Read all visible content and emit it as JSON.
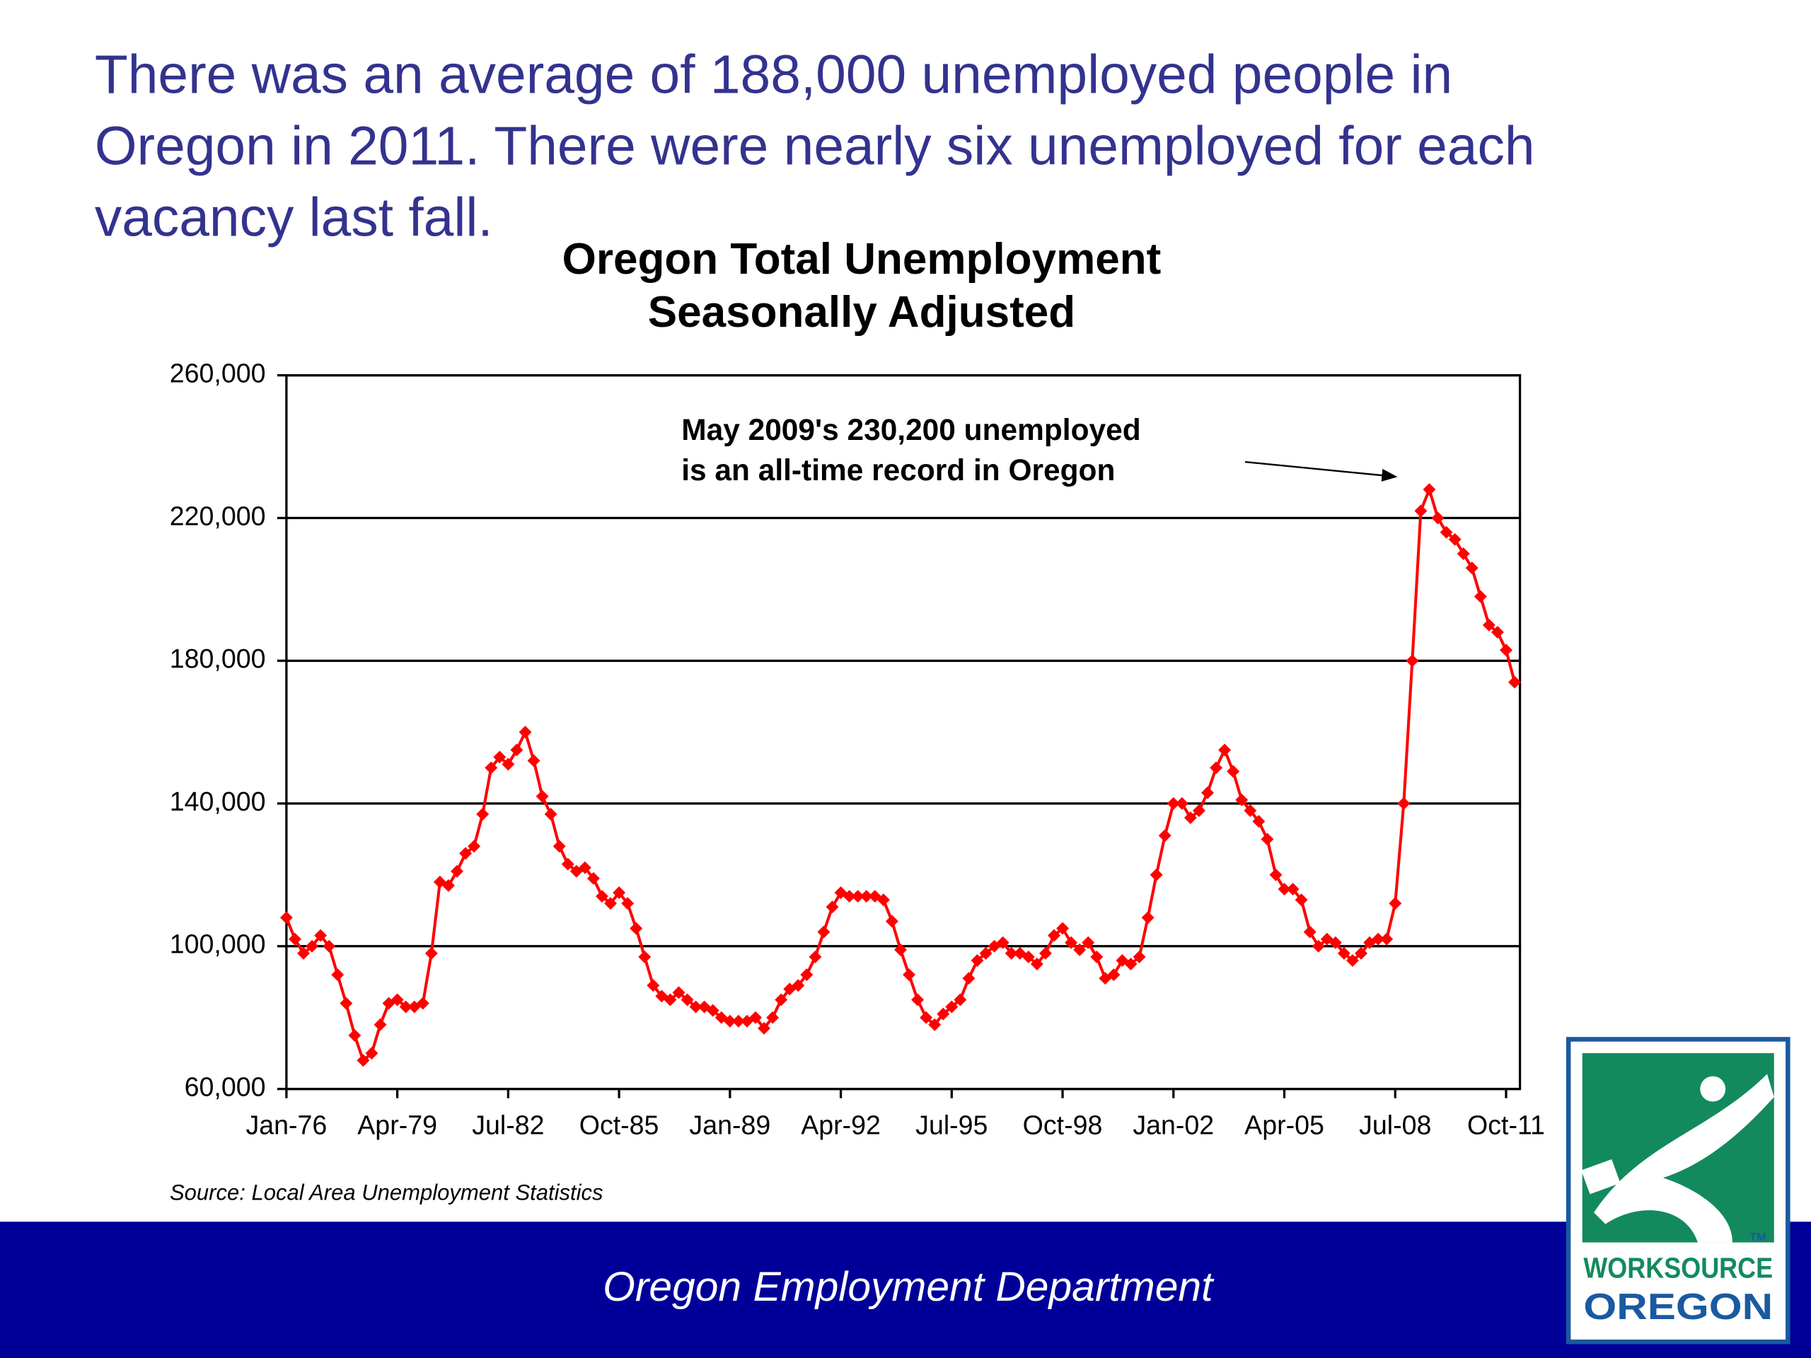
{
  "header": {
    "lines": [
      "There was an average of 188,000 unemployed people in",
      "Oregon in 2011. There were nearly six unemployed for each",
      "vacancy last fall."
    ]
  },
  "chart_data": {
    "type": "line",
    "title": "Oregon Total Unemployment",
    "subtitle": "Seasonally Adjusted",
    "annotation": [
      "May 2009's 230,200 unemployed",
      "is an all-time record in Oregon"
    ],
    "source": "Source: Local Area Unemployment Statistics",
    "categories": [
      "Jan-76",
      null,
      null,
      null,
      null,
      null,
      null,
      null,
      null,
      null,
      null,
      null,
      null,
      "Apr-79",
      null,
      null,
      null,
      null,
      null,
      null,
      null,
      null,
      null,
      null,
      null,
      null,
      "Jul-82",
      null,
      null,
      null,
      null,
      null,
      null,
      null,
      null,
      null,
      null,
      null,
      null,
      "Oct-85",
      null,
      null,
      null,
      null,
      null,
      null,
      null,
      null,
      null,
      null,
      null,
      null,
      "Jan-89",
      null,
      null,
      null,
      null,
      null,
      null,
      null,
      null,
      null,
      null,
      null,
      null,
      "Apr-92",
      null,
      null,
      null,
      null,
      null,
      null,
      null,
      null,
      null,
      null,
      null,
      null,
      "Jul-95",
      null,
      null,
      null,
      null,
      null,
      null,
      null,
      null,
      null,
      null,
      null,
      null,
      "Oct-98",
      null,
      null,
      null,
      null,
      null,
      null,
      null,
      null,
      null,
      null,
      null,
      null,
      "Jan-02",
      null,
      null,
      null,
      null,
      null,
      null,
      null,
      null,
      null,
      null,
      null,
      null,
      "Apr-05",
      null,
      null,
      null,
      null,
      null,
      null,
      null,
      null,
      null,
      null,
      null,
      null,
      "Jul-08",
      null,
      null,
      null,
      null,
      null,
      null,
      null,
      null,
      null,
      null,
      null,
      null,
      "Oct-11",
      null
    ],
    "series": [
      {
        "name": "Oregon Total Unemployment",
        "color": "#ff0000",
        "values": [
          108000,
          102000,
          98000,
          100000,
          103000,
          100000,
          92000,
          84000,
          75000,
          68000,
          70000,
          78000,
          84000,
          85000,
          83000,
          83000,
          84000,
          98000,
          118000,
          117000,
          121000,
          126000,
          128000,
          137000,
          150000,
          153000,
          151000,
          155000,
          160000,
          152000,
          142000,
          137000,
          128000,
          123000,
          121000,
          122000,
          119000,
          114000,
          112000,
          115000,
          112000,
          105000,
          97000,
          89000,
          86000,
          85000,
          87000,
          85000,
          83000,
          83000,
          82000,
          80000,
          79000,
          79000,
          79000,
          80000,
          77000,
          80000,
          85000,
          88000,
          89000,
          92000,
          97000,
          104000,
          111000,
          115000,
          114000,
          114000,
          114000,
          114000,
          113000,
          107000,
          99000,
          92000,
          85000,
          80000,
          78000,
          81000,
          83000,
          85000,
          91000,
          96000,
          98000,
          100000,
          101000,
          98000,
          98000,
          97000,
          95000,
          98000,
          103000,
          105000,
          101000,
          99000,
          101000,
          97000,
          91000,
          92000,
          96000,
          95000,
          97000,
          108000,
          120000,
          131000,
          140000,
          140000,
          136000,
          138000,
          143000,
          150000,
          155000,
          149000,
          141000,
          138000,
          135000,
          130000,
          120000,
          116000,
          116000,
          113000,
          104000,
          100000,
          102000,
          101000,
          98000,
          96000,
          98000,
          101000,
          102000,
          102000,
          112000,
          140000,
          180000,
          222000,
          228000,
          220000,
          216000,
          214000,
          210000,
          206000,
          198000,
          190000,
          188000,
          183000,
          174000
        ]
      }
    ],
    "ylim": [
      60000,
      260000
    ],
    "yticks": [
      {
        "value": 60000,
        "label": "60,000"
      },
      {
        "value": 100000,
        "label": "100,000"
      },
      {
        "value": 140000,
        "label": "140,000"
      },
      {
        "value": 180000,
        "label": "180,000"
      },
      {
        "value": 220000,
        "label": "220,000"
      },
      {
        "value": 260000,
        "label": "260,000"
      }
    ],
    "grid": true
  },
  "footer": {
    "text": "Oregon Employment Department"
  },
  "logo": {
    "tm": "TM",
    "line1": "WORKSOURCE",
    "line2": "OREGON"
  }
}
